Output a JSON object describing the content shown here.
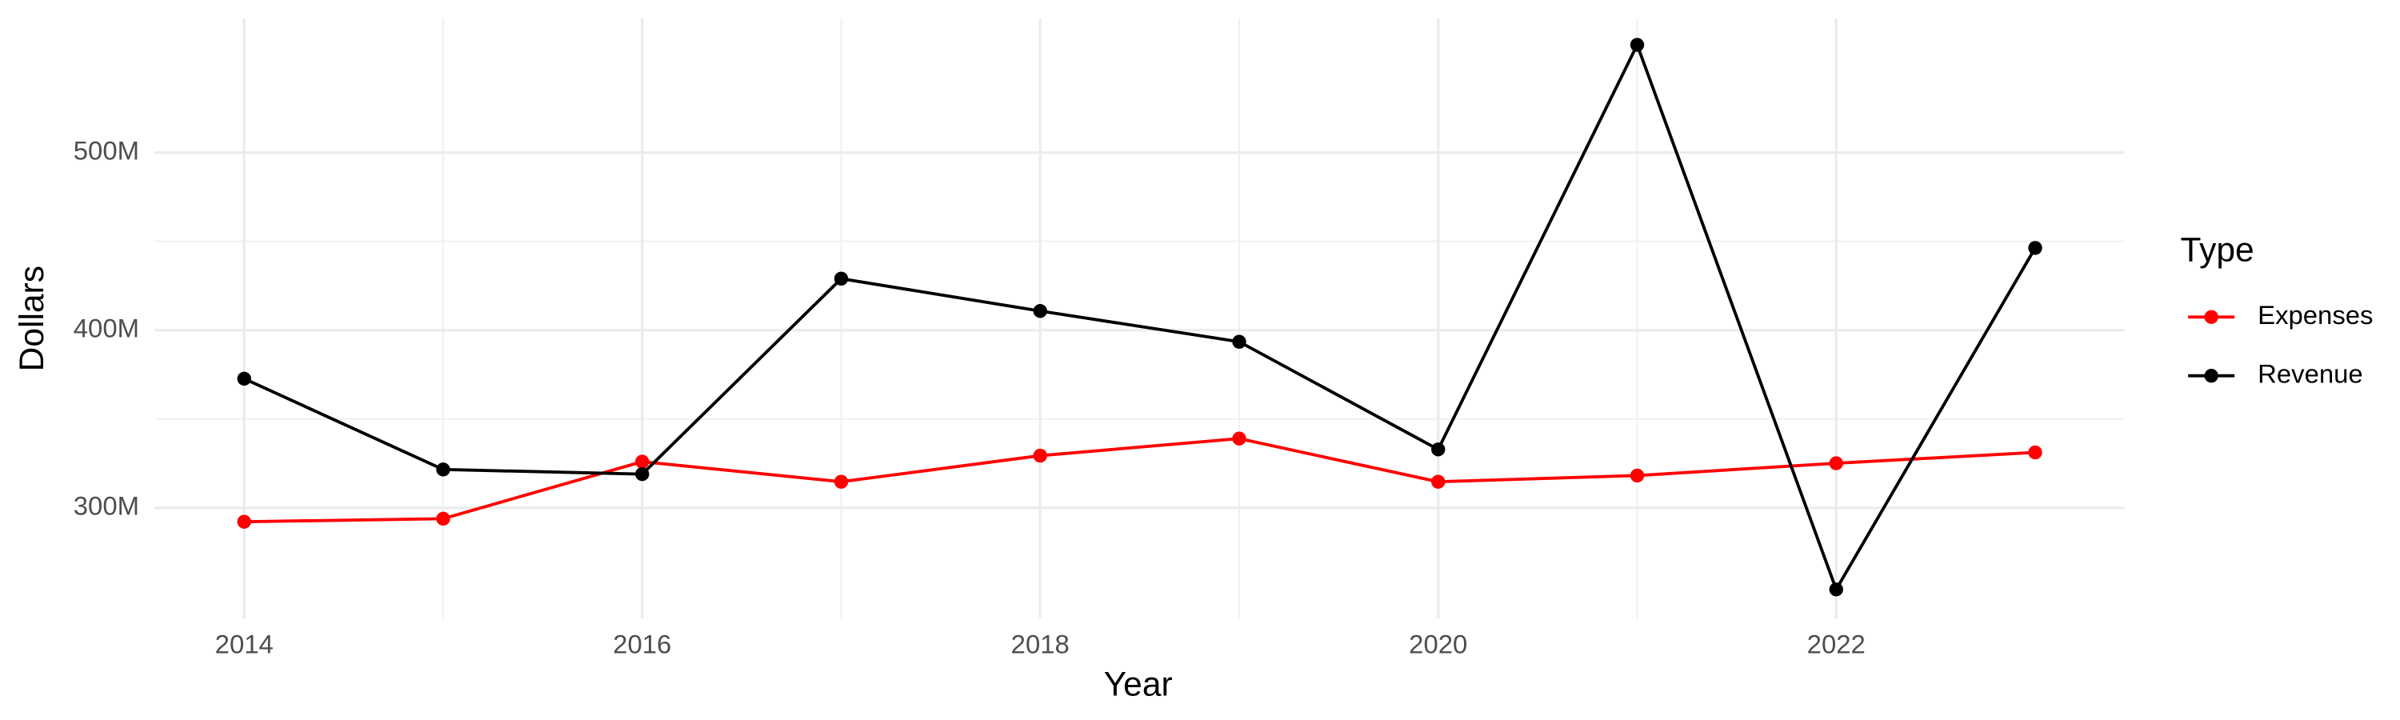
{
  "chart_data": {
    "type": "line",
    "x_label": "Year",
    "y_label": "Dollars",
    "legend_title": "Type",
    "x": [
      2014,
      2015,
      2016,
      2017,
      2018,
      2019,
      2020,
      2021,
      2022,
      2023
    ],
    "series": [
      {
        "name": "Expenses",
        "color": "#ff0000",
        "values": [
          292200000,
          293900000,
          326000000,
          314700000,
          329400000,
          339000000,
          314700000,
          318200000,
          325100000,
          331200000
        ]
      },
      {
        "name": "Revenue",
        "color": "#000000",
        "values": [
          372700000,
          321600000,
          319000000,
          429000000,
          410800000,
          393500000,
          332900000,
          560600000,
          254100000,
          446300000
        ]
      }
    ],
    "xlim": [
      2013.55,
      2023.45
    ],
    "xticks": [
      2014,
      2016,
      2018,
      2020,
      2022
    ],
    "ylim": [
      237700000,
      575400000
    ],
    "yticks": [
      {
        "value": 300000000,
        "label": "300M"
      },
      {
        "value": 400000000,
        "label": "400M"
      },
      {
        "value": 500000000,
        "label": "500M"
      }
    ],
    "grid": true,
    "legend": "right"
  }
}
